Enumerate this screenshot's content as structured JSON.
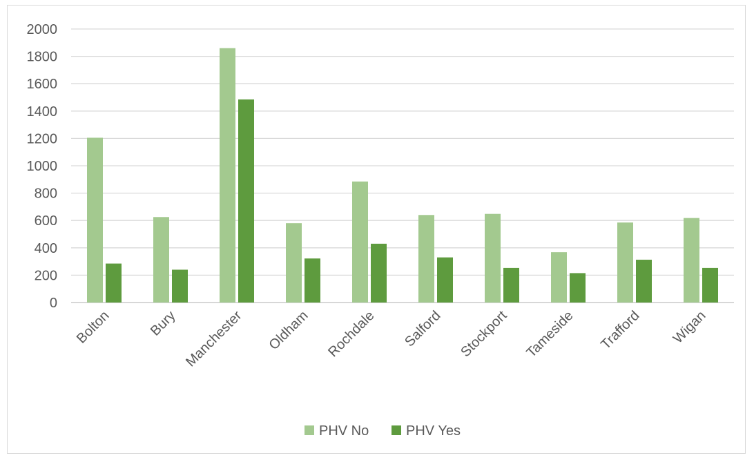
{
  "chart_data": {
    "type": "bar",
    "title": "",
    "xlabel": "",
    "ylabel": "",
    "categories": [
      "Bolton",
      "Bury",
      "Manchester",
      "Oldham",
      "Rochdale",
      "Salford",
      "Stockport",
      "Tameside",
      "Trafford",
      "Wigan"
    ],
    "series": [
      {
        "name": "PHV No",
        "color": "#a3c98f",
        "values": [
          1205,
          625,
          1860,
          580,
          885,
          640,
          648,
          368,
          585,
          618
        ]
      },
      {
        "name": "PHV Yes",
        "color": "#5e9b3e",
        "values": [
          285,
          240,
          1485,
          322,
          430,
          330,
          253,
          215,
          313,
          253
        ]
      }
    ],
    "ylim": [
      0,
      2000
    ],
    "yticks": [
      0,
      200,
      400,
      600,
      800,
      1000,
      1200,
      1400,
      1600,
      1800,
      2000
    ],
    "grid": true,
    "legend_position": "bottom"
  }
}
